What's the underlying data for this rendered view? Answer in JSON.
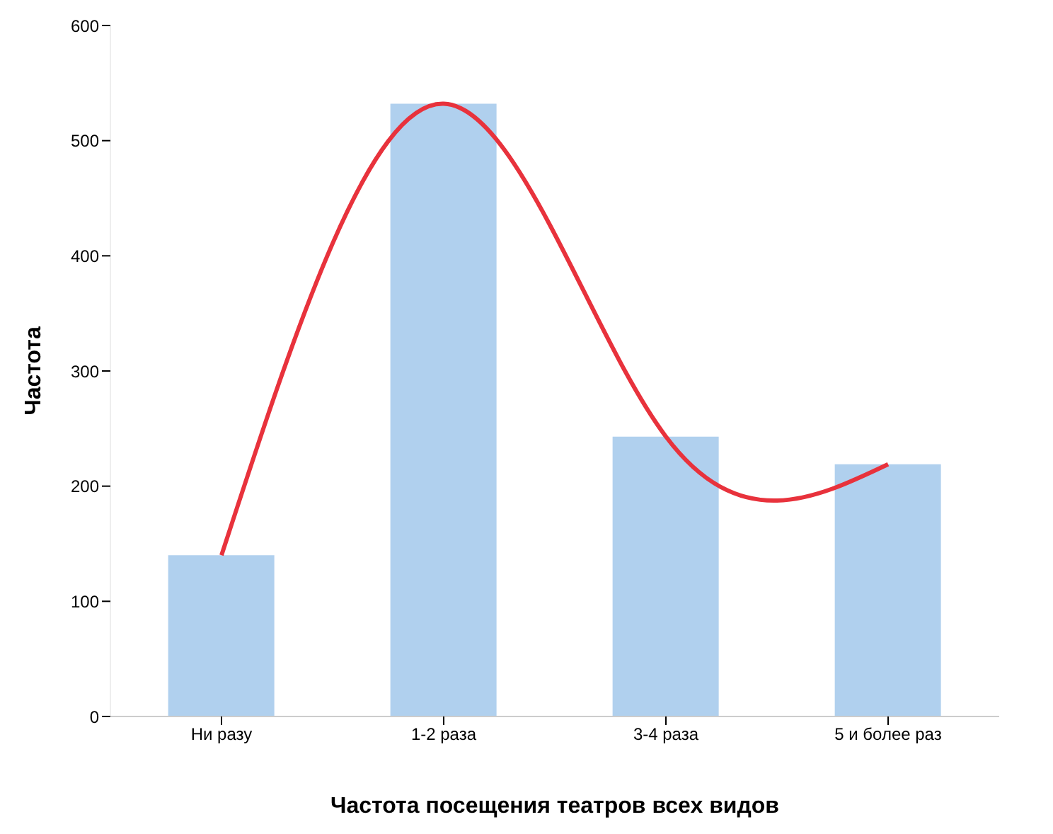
{
  "chart_data": {
    "type": "bar",
    "xlabel": "Частота посещения театров всех видов",
    "ylabel": "Частота",
    "categories": [
      "Ни разу",
      "1-2 раза",
      "3-4 раза",
      "5 и более раз"
    ],
    "series": [
      {
        "color": "#b0d0ee",
        "values": [
          140,
          532,
          243,
          219
        ]
      },
      {
        "type": "line",
        "color": "#e8323c",
        "values": [
          140,
          532,
          243,
          219
        ]
      }
    ],
    "ylim": [
      0,
      600
    ],
    "yticks": [
      0,
      100,
      200,
      300,
      400,
      500,
      600
    ],
    "grid": false,
    "legend": false,
    "marker": "none",
    "line_style": "solid"
  }
}
